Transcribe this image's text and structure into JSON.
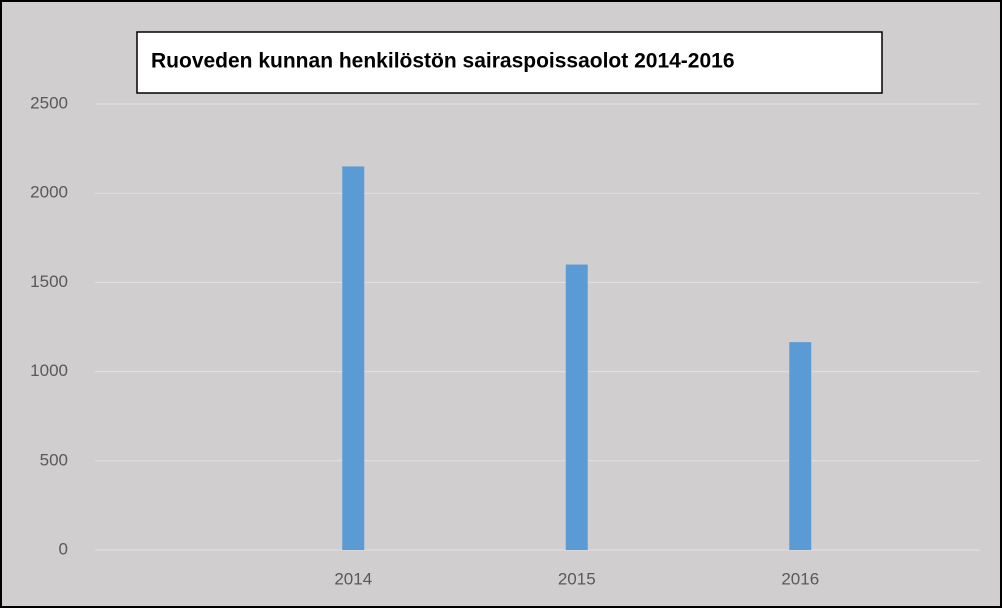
{
  "chart_data": {
    "type": "bar",
    "title": "Ruoveden kunnan henkilöstön sairaspoissaolot 2014-2016",
    "categories": [
      "2014",
      "2015",
      "2016"
    ],
    "values": [
      2150,
      1600,
      1165
    ],
    "color": "#5b9bd5",
    "ylim": [
      0,
      2500
    ],
    "yticks": [
      0,
      500,
      1000,
      1500,
      2000,
      2500
    ],
    "grid": true
  }
}
